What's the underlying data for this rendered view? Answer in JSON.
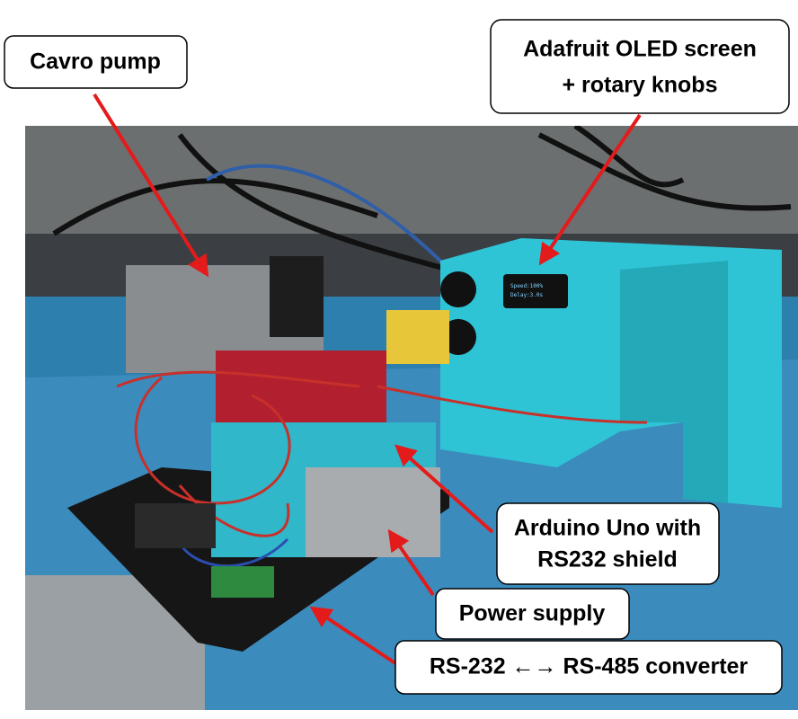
{
  "callouts": [
    {
      "lines": [
        "Cavro pump"
      ]
    },
    {
      "lines": [
        "Adafruit OLED screen",
        "+ rotary knobs"
      ]
    },
    {
      "lines": [
        "Arduino Uno with",
        "RS232 shield"
      ]
    },
    {
      "lines": [
        "Power supply"
      ]
    },
    {
      "lines": [
        "RS-232 ←→ RS-485 converter"
      ]
    }
  ],
  "oled": {
    "lines": [
      "Speed:100%",
      "Delay:3.0s"
    ]
  }
}
